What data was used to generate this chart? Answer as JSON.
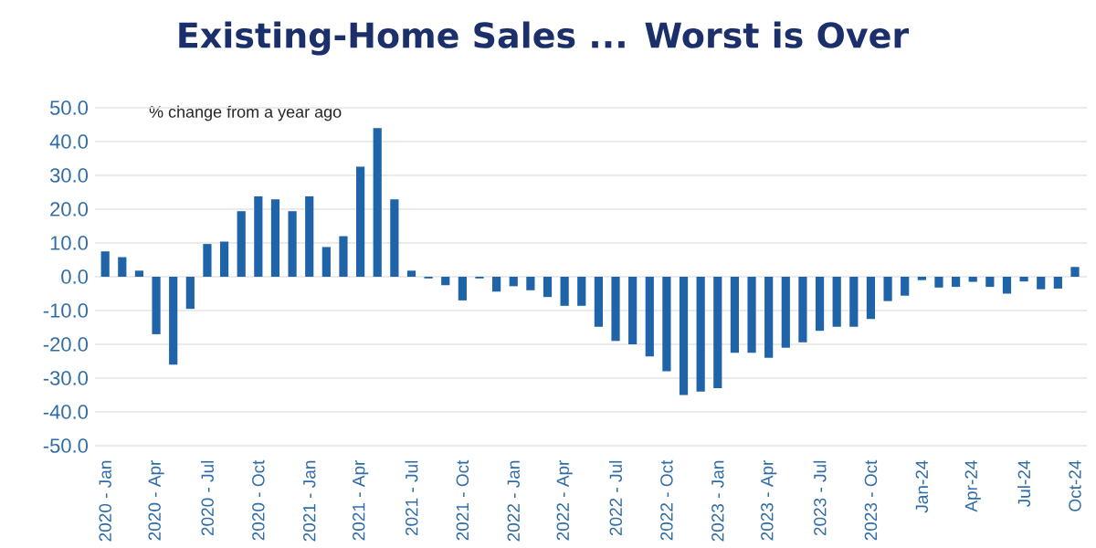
{
  "chart_data": {
    "type": "bar",
    "title": "Existing-Home Sales ... Worst is Over",
    "annotations": [
      "% change from a year ago"
    ],
    "categories": [
      "2020 - Jan",
      null,
      null,
      "2020 - Apr",
      null,
      null,
      "2020 - Jul",
      null,
      null,
      "2020 - Oct",
      null,
      null,
      "2021 - Jan",
      null,
      null,
      "2021 - Apr",
      null,
      null,
      "2021 - Jul",
      null,
      null,
      "2021 - Oct",
      null,
      null,
      "2022 - Jan",
      null,
      null,
      "2022 - Apr",
      null,
      null,
      "2022 - Jul",
      null,
      null,
      "2022 - Oct",
      null,
      null,
      "2023 - Jan",
      null,
      null,
      "2023 - Apr",
      null,
      null,
      "2023 - Jul",
      null,
      null,
      "2023 - Oct",
      null,
      null,
      "Jan-24",
      null,
      null,
      "Apr-24",
      null,
      null,
      "Jul-24",
      null,
      null,
      "Oct-24"
    ],
    "values": [
      7.5,
      5.8,
      1.8,
      -17,
      -26,
      -9.5,
      9.7,
      10.4,
      19.4,
      23.8,
      22.9,
      19.4,
      23.8,
      8.8,
      12,
      32.6,
      44,
      22.9,
      1.8,
      -0.5,
      -2.5,
      -7,
      -0.5,
      -4.4,
      -2.8,
      -4,
      -6,
      -8.6,
      -8.6,
      -14.8,
      -19,
      -20,
      -23.6,
      -28,
      -35,
      -34,
      -33,
      -22.5,
      -22.5,
      -24,
      -21,
      -19.4,
      -16,
      -14.8,
      -14.8,
      -12.5,
      -7.2,
      -5.6,
      -1,
      -3.2,
      -3,
      -1.5,
      -3,
      -5,
      -1.4,
      -3.7,
      -3.5,
      2.9
    ],
    "color": "#1f63a8",
    "ylim": [
      -50,
      50
    ],
    "yticks": [
      {
        "value": -50,
        "label": "-50.0"
      },
      {
        "value": -40,
        "label": "-40.0"
      },
      {
        "value": -30,
        "label": "-30.0"
      },
      {
        "value": -20,
        "label": "-20.0"
      },
      {
        "value": -10,
        "label": "-10.0"
      },
      {
        "value": 0,
        "label": "0.0"
      },
      {
        "value": 10,
        "label": "10.0"
      },
      {
        "value": 20,
        "label": "20.0"
      },
      {
        "value": 30,
        "label": "30.0"
      },
      {
        "value": 40,
        "label": "40.0"
      },
      {
        "value": 50,
        "label": "50.0"
      }
    ],
    "grid": "y"
  }
}
